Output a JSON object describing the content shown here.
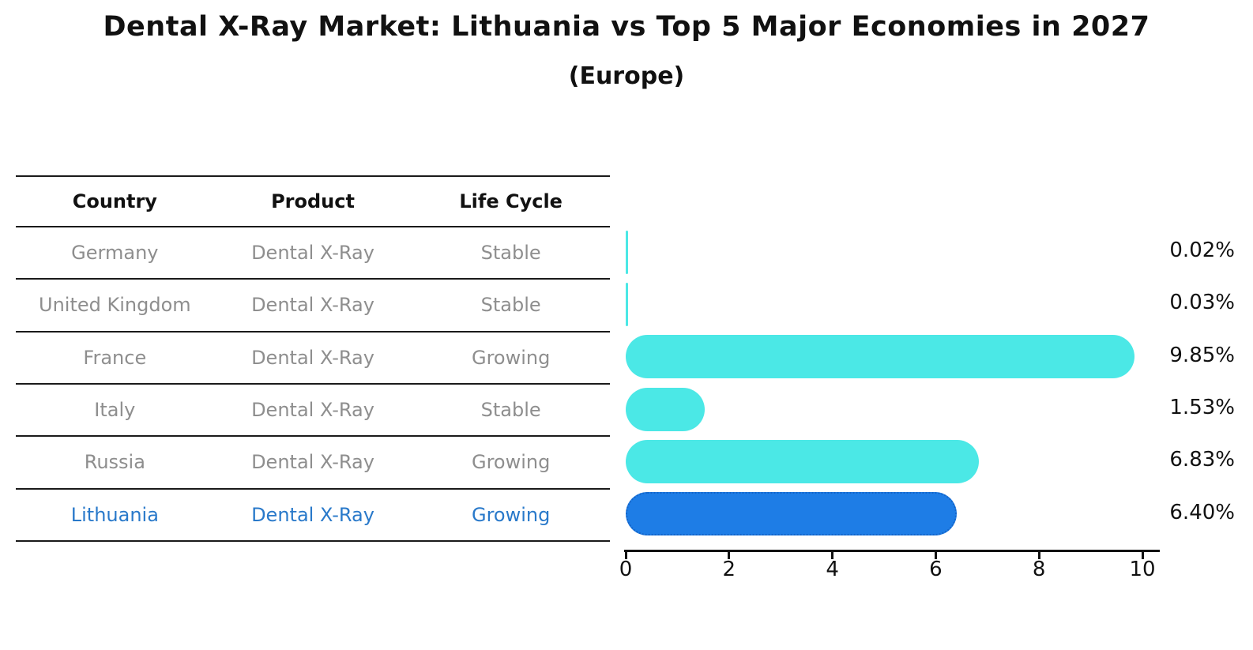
{
  "title": "Dental X-Ray Market: Lithuania vs Top 5 Major Economies in 2027",
  "subtitle": "(Europe)",
  "table": {
    "headers": [
      "Country",
      "Product",
      "Life Cycle"
    ],
    "rows": [
      {
        "country": "Germany",
        "product": "Dental X-Ray",
        "life_cycle": "Stable",
        "highlight": false
      },
      {
        "country": "United Kingdom",
        "product": "Dental X-Ray",
        "life_cycle": "Stable",
        "highlight": false
      },
      {
        "country": "France",
        "product": "Dental X-Ray",
        "life_cycle": "Growing",
        "highlight": false
      },
      {
        "country": "Italy",
        "product": "Dental X-Ray",
        "life_cycle": "Stable",
        "highlight": false
      },
      {
        "country": "Russia",
        "product": "Dental X-Ray",
        "life_cycle": "Growing",
        "highlight": false
      },
      {
        "country": "Lithuania",
        "product": "Dental X-Ray",
        "life_cycle": "Growing",
        "highlight": true
      }
    ]
  },
  "chart_data": {
    "type": "bar",
    "orientation": "horizontal",
    "title": "Dental X-Ray Market: Lithuania vs Top 5 Major Economies in 2027",
    "subtitle": "(Europe)",
    "categories": [
      "Germany",
      "United Kingdom",
      "France",
      "Italy",
      "Russia",
      "Lithuania"
    ],
    "values": [
      0.02,
      0.03,
      9.85,
      1.53,
      6.83,
      6.4
    ],
    "value_labels": [
      "0.02%",
      "0.03%",
      "9.85%",
      "1.53%",
      "6.83%",
      "6.40%"
    ],
    "x_ticks": [
      0,
      2,
      4,
      6,
      8,
      10
    ],
    "xlim": [
      0,
      10
    ],
    "grid": false,
    "highlight_category": "Lithuania",
    "colors": {
      "bar": "#4be8e6",
      "highlight_bar": "#1e7de6",
      "highlight_bar_border": "#1464c8",
      "highlight_text": "#2979ca",
      "row_text": "#8e8e8e",
      "header_text": "#111111",
      "axis": "#111111"
    }
  }
}
